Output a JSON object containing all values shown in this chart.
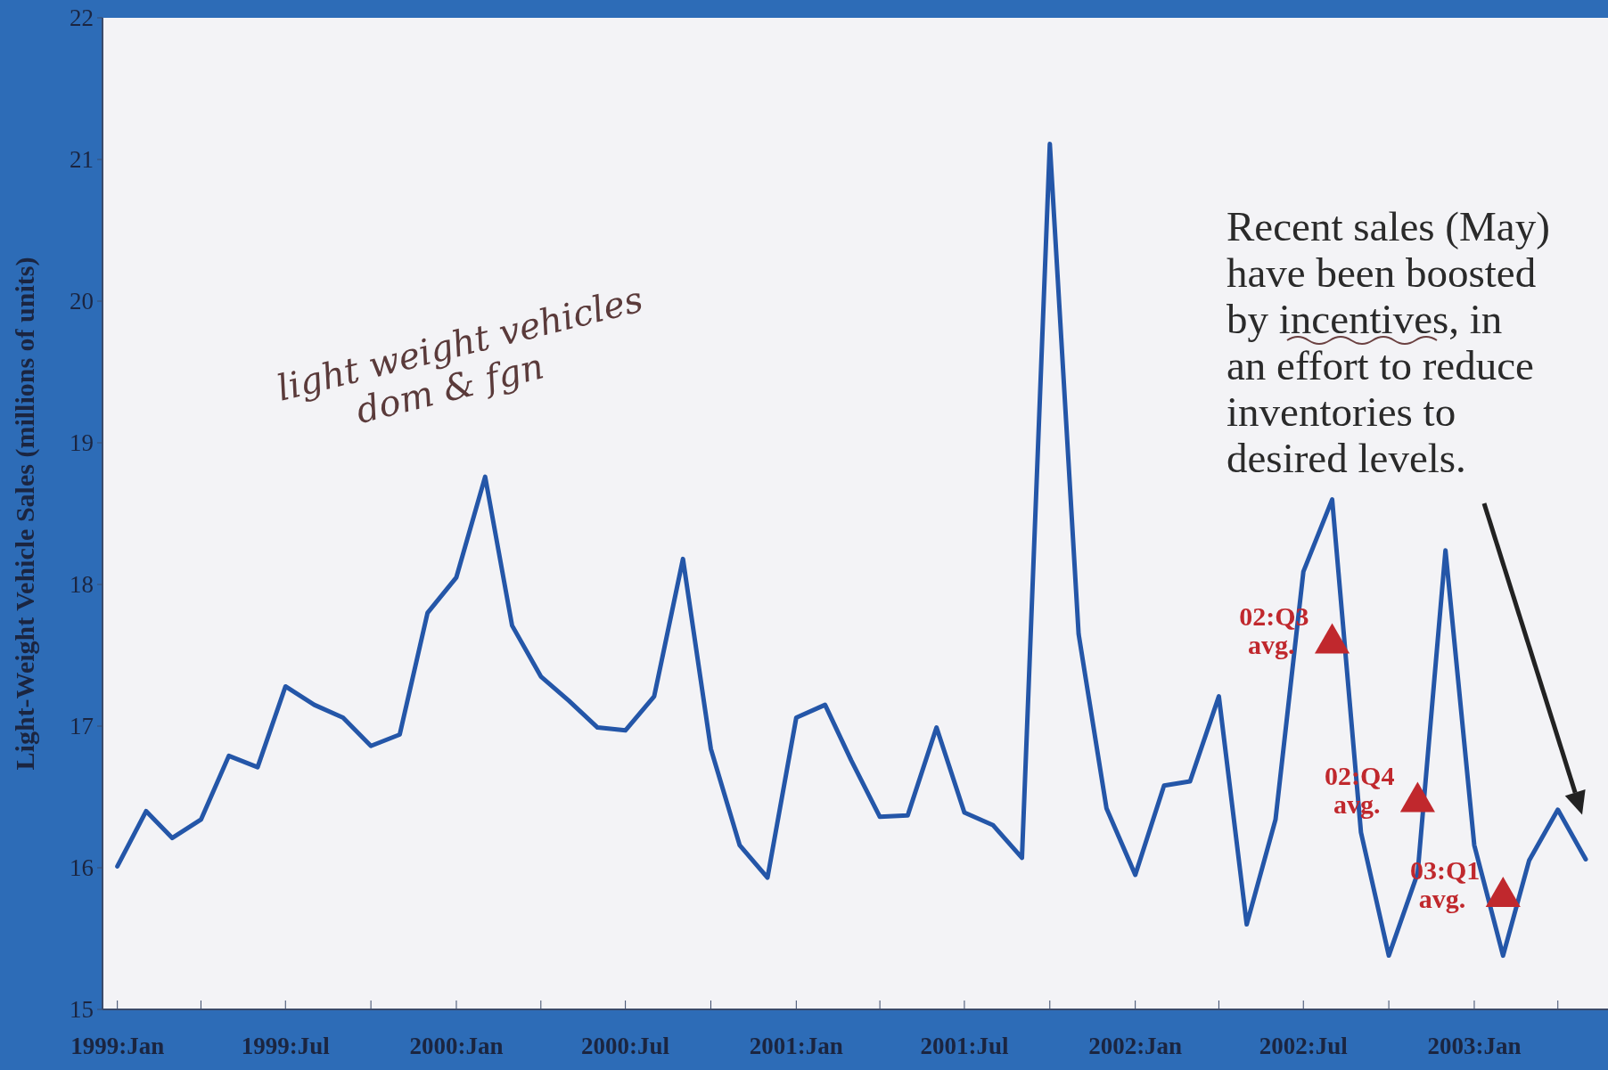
{
  "chart_data": {
    "type": "line",
    "ylabel": "Light-Weight Vehicle Sales (millions of units)",
    "x": [
      "1999-01",
      "1999-02",
      "1999-03",
      "1999-04",
      "1999-05",
      "1999-06",
      "1999-07",
      "1999-08",
      "1999-09",
      "1999-10",
      "1999-11",
      "1999-12",
      "2000-01",
      "2000-02",
      "2000-03",
      "2000-04",
      "2000-05",
      "2000-06",
      "2000-07",
      "2000-08",
      "2000-09",
      "2000-10",
      "2000-11",
      "2000-12",
      "2001-01",
      "2001-02",
      "2001-03",
      "2001-04",
      "2001-05",
      "2001-06",
      "2001-07",
      "2001-08",
      "2001-09",
      "2001-10",
      "2001-11",
      "2001-12",
      "2002-01",
      "2002-02",
      "2002-03",
      "2002-04",
      "2002-05",
      "2002-06",
      "2002-07",
      "2002-08",
      "2002-09",
      "2002-10",
      "2002-11",
      "2002-12",
      "2003-01",
      "2003-02",
      "2003-03",
      "2003-04",
      "2003-05"
    ],
    "series": [
      {
        "color": "#2456a8",
        "marker": "none",
        "values": [
          16.01,
          16.4,
          16.21,
          16.34,
          16.79,
          16.71,
          17.28,
          17.15,
          17.06,
          16.86,
          16.94,
          17.8,
          18.05,
          18.76,
          17.71,
          17.35,
          17.18,
          16.99,
          16.97,
          17.21,
          18.18,
          16.84,
          16.16,
          15.93,
          17.06,
          17.15,
          16.76,
          16.36,
          16.37,
          16.99,
          16.39,
          16.3,
          16.07,
          21.11,
          17.65,
          16.42,
          15.95,
          16.58,
          16.61,
          17.21,
          15.6,
          16.34,
          18.09,
          18.6,
          16.25,
          15.38,
          15.96,
          18.24,
          16.16,
          15.38,
          16.05,
          16.41,
          16.06
        ]
      },
      {
        "type": "scatter",
        "color": "#c0282d",
        "marker": "triangle",
        "x": [
          "2002-08",
          "2002-11",
          "2003-02"
        ],
        "values": [
          17.62,
          16.5,
          15.83
        ]
      }
    ],
    "xlim": [
      "1998-12-16",
      "2003-05-25"
    ],
    "xticks": [
      {
        "value": "1999-01",
        "label": "1999:Jan"
      },
      {
        "value": "1999-04",
        "label": null
      },
      {
        "value": "1999-07",
        "label": "1999:Jul"
      },
      {
        "value": "1999-10",
        "label": null
      },
      {
        "value": "2000-01",
        "label": "2000:Jan"
      },
      {
        "value": "2000-04",
        "label": null
      },
      {
        "value": "2000-07",
        "label": "2000:Jul"
      },
      {
        "value": "2000-10",
        "label": null
      },
      {
        "value": "2001-01",
        "label": "2001:Jan"
      },
      {
        "value": "2001-04",
        "label": null
      },
      {
        "value": "2001-07",
        "label": "2001:Jul"
      },
      {
        "value": "2001-10",
        "label": null
      },
      {
        "value": "2002-01",
        "label": "2002:Jan"
      },
      {
        "value": "2002-04",
        "label": null
      },
      {
        "value": "2002-07",
        "label": "2002:Jul"
      },
      {
        "value": "2002-10",
        "label": null
      },
      {
        "value": "2003-01",
        "label": "2003:Jan"
      },
      {
        "value": "2003-04",
        "label": null
      }
    ],
    "ylim": [
      15,
      22
    ],
    "yticks": [
      15,
      16,
      17,
      18,
      19,
      20,
      21,
      22
    ],
    "grid": false,
    "annotations": [
      {
        "text": "02:Q3 avg.",
        "x": "2002-08",
        "y": 17.62
      },
      {
        "text": "02:Q4 avg.",
        "x": "2002-11",
        "y": 16.5
      },
      {
        "text": "03:Q1 avg.",
        "x": "2003-02",
        "y": 15.83
      },
      "Recent sales (May) have been boosted by incentives, in an effort to reduce inventories to desired levels.",
      "light weight vehicles dom & fgn"
    ]
  }
}
